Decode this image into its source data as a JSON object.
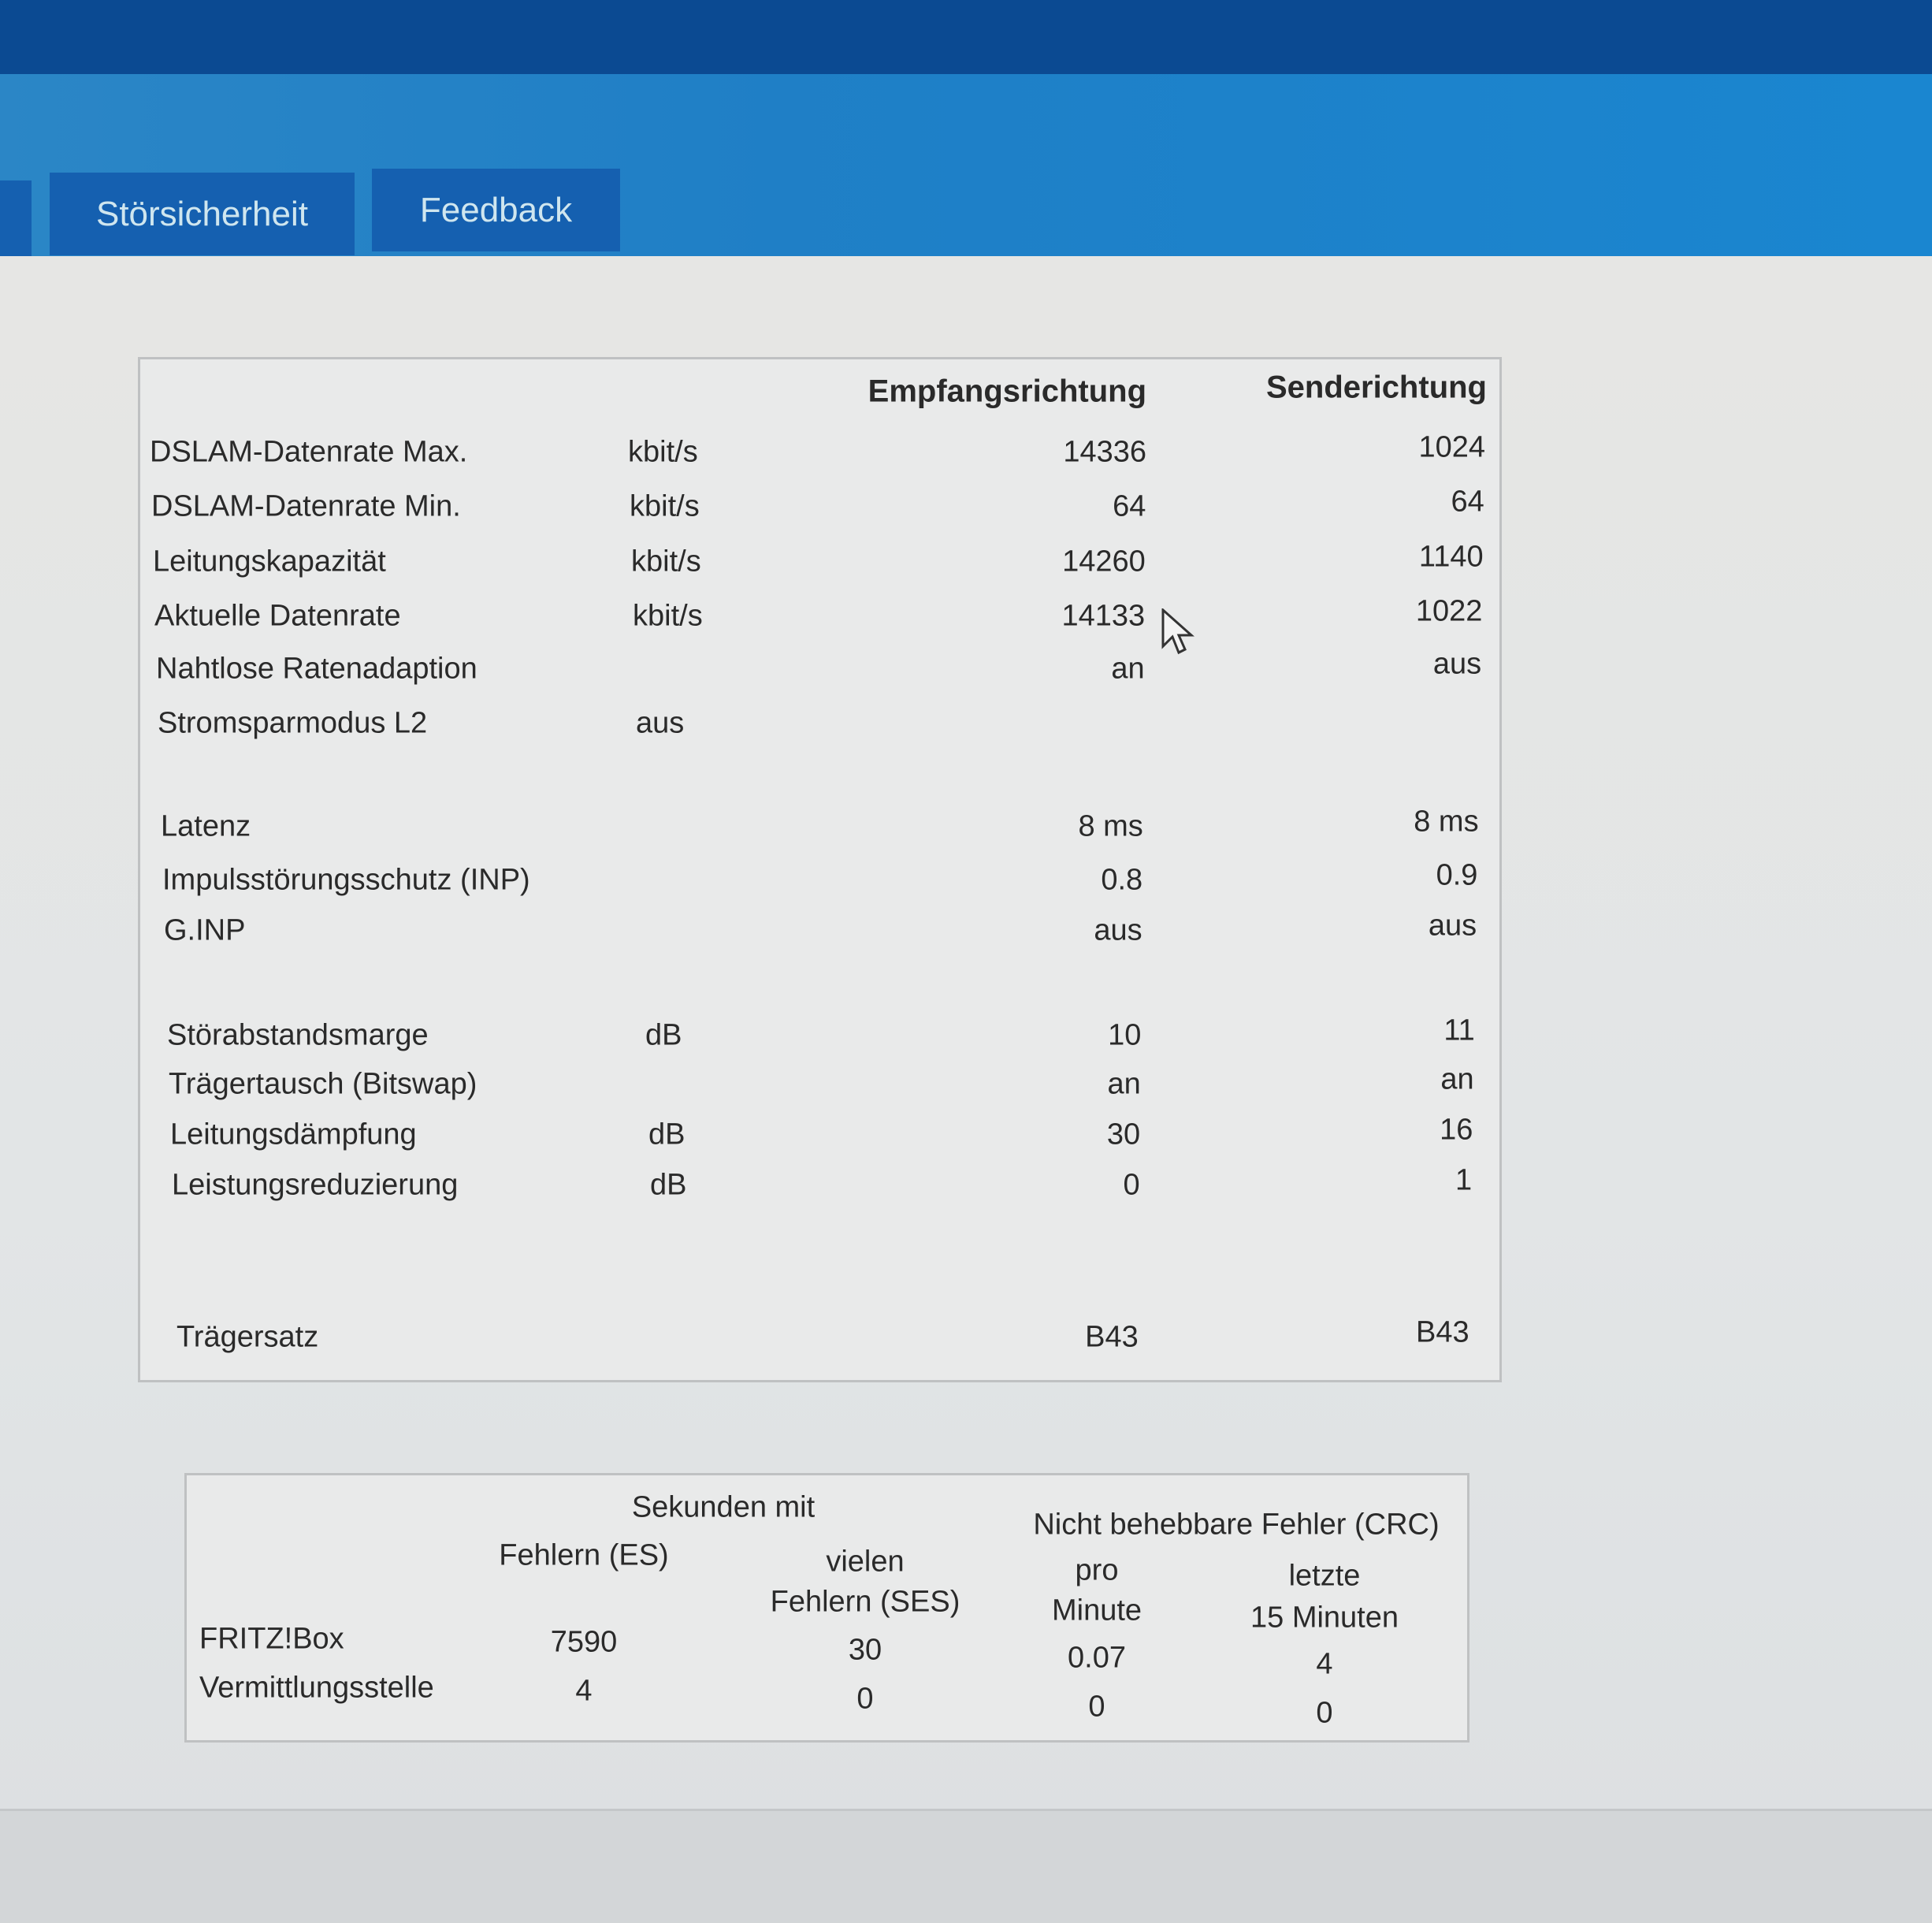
{
  "tabs": [
    {
      "label": "Störsicherheit"
    },
    {
      "label": "Feedback"
    }
  ],
  "line_table": {
    "headers": {
      "downstream": "Empfangsrichtung",
      "upstream": "Senderichtung"
    },
    "rows": [
      {
        "label": "DSLAM-Datenrate Max.",
        "unit": "kbit/s",
        "down": "14336",
        "up": "1024"
      },
      {
        "label": "DSLAM-Datenrate Min.",
        "unit": "kbit/s",
        "down": "64",
        "up": "64"
      },
      {
        "label": "Leitungskapazität",
        "unit": "kbit/s",
        "down": "14260",
        "up": "1140"
      },
      {
        "label": "Aktuelle Datenrate",
        "unit": "kbit/s",
        "down": "14133",
        "up": "1022"
      },
      {
        "label": "Nahtlose Ratenadaption",
        "unit": "",
        "down": "an",
        "up": "aus"
      },
      {
        "label": "Stromsparmodus L2",
        "unit": "aus",
        "down": "",
        "up": ""
      },
      {
        "label": "Latenz",
        "unit": "",
        "down": "8 ms",
        "up": "8 ms"
      },
      {
        "label": "Impulsstörungsschutz (INP)",
        "unit": "",
        "down": "0.8",
        "up": "0.9"
      },
      {
        "label": "G.INP",
        "unit": "",
        "down": "aus",
        "up": "aus"
      },
      {
        "label": "Störabstandsmarge",
        "unit": "dB",
        "down": "10",
        "up": "11"
      },
      {
        "label": "Trägertausch (Bitswap)",
        "unit": "",
        "down": "an",
        "up": "an"
      },
      {
        "label": "Leitungsdämpfung",
        "unit": "dB",
        "down": "30",
        "up": "16"
      },
      {
        "label": "Leistungsreduzierung",
        "unit": "dB",
        "down": "0",
        "up": "1"
      },
      {
        "label": "Trägersatz",
        "unit": "",
        "down": "B43",
        "up": "B43"
      }
    ]
  },
  "error_table": {
    "group_seconds": "Sekunden mit",
    "group_crc": "Nicht behebbare Fehler (CRC)",
    "col_es": "Fehlern (ES)",
    "col_ses_1": "vielen",
    "col_ses_2": "Fehlern (SES)",
    "col_min_1": "pro",
    "col_min_2": "Minute",
    "col_15_1": "letzte",
    "col_15_2": "15 Minuten",
    "rows": [
      {
        "label": "FRITZ!Box",
        "es": "7590",
        "ses": "30",
        "per_min": "0.07",
        "last15": "4"
      },
      {
        "label": "Vermittlungsstelle",
        "es": "4",
        "ses": "0",
        "per_min": "0",
        "last15": "0"
      }
    ]
  },
  "colors": {
    "header_dark": "#0b4a92",
    "header_blue": "#1f7fc6",
    "tab": "#1560b0",
    "tab_text": "#cfe6ef"
  }
}
